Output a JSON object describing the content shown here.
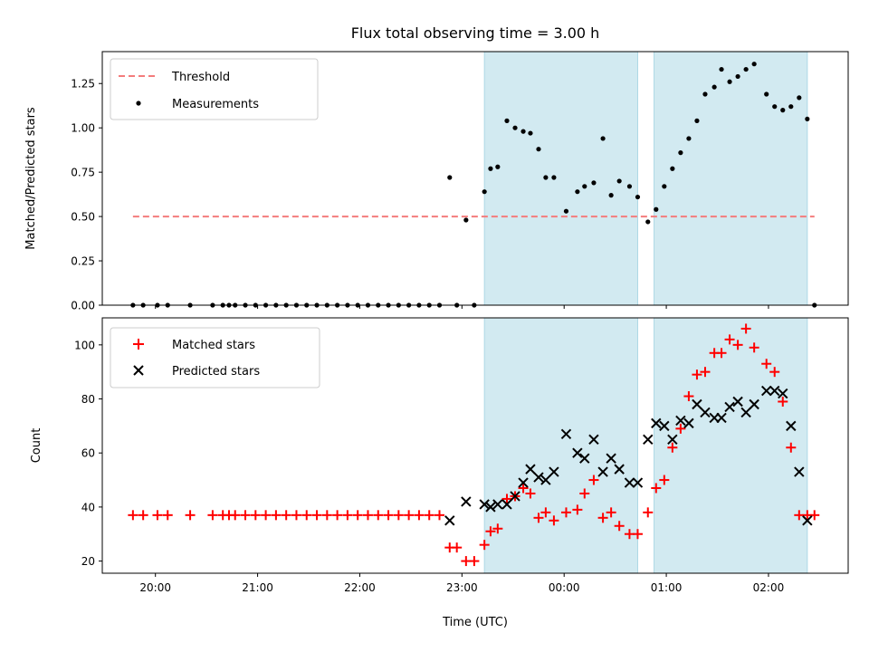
{
  "chart_data": {
    "title": "Flux total observing time = 3.00 h",
    "xlabel": "Time (UTC)",
    "x_unit": "hours relative to 00:00 UTC",
    "xlim": [
      -4.52,
      2.78
    ],
    "x_ticks": [
      {
        "value": -4,
        "label": "20:00"
      },
      {
        "value": -3,
        "label": "21:00"
      },
      {
        "value": -2,
        "label": "22:00"
      },
      {
        "value": -1,
        "label": "23:00"
      },
      {
        "value": 0,
        "label": "00:00"
      },
      {
        "value": 1,
        "label": "01:00"
      },
      {
        "value": 2,
        "label": "02:00"
      }
    ],
    "shaded_intervals": [
      [
        -0.78,
        0.72
      ],
      [
        0.88,
        2.38
      ]
    ],
    "shade_color": "#add8e6",
    "panels": [
      {
        "type": "scatter",
        "ylabel": "Matched/Predicted stars",
        "ylim": [
          0,
          1.43
        ],
        "y_ticks": [
          {
            "value": 0,
            "label": "0.00"
          },
          {
            "value": 0.25,
            "label": "0.25"
          },
          {
            "value": 0.5,
            "label": "0.50"
          },
          {
            "value": 0.75,
            "label": "0.75"
          },
          {
            "value": 1.0,
            "label": "1.00"
          },
          {
            "value": 1.25,
            "label": "1.25"
          }
        ],
        "legend_position": "upper-left",
        "threshold": {
          "name": "Threshold",
          "value": 0.5,
          "x_range": [
            -4.22,
            2.45
          ],
          "color": "#f47c7c"
        },
        "series": [
          {
            "name": "Measurements",
            "marker": "dot",
            "color": "#000000",
            "x": [
              -4.22,
              -4.12,
              -3.98,
              -3.88,
              -3.66,
              -3.44,
              -3.34,
              -3.28,
              -3.22,
              -3.12,
              -3.02,
              -2.92,
              -2.82,
              -2.72,
              -2.62,
              -2.52,
              -2.42,
              -2.32,
              -2.22,
              -2.12,
              -2.02,
              -1.92,
              -1.82,
              -1.72,
              -1.62,
              -1.52,
              -1.42,
              -1.32,
              -1.22,
              -1.12,
              -1.05,
              -0.96,
              -0.88,
              -0.78,
              -0.72,
              -0.65,
              -0.56,
              -0.48,
              -0.4,
              -0.33,
              -0.25,
              -0.18,
              -0.1,
              0.02,
              0.13,
              0.2,
              0.29,
              0.38,
              0.46,
              0.54,
              0.64,
              0.72,
              0.82,
              0.9,
              0.98,
              1.06,
              1.14,
              1.22,
              1.3,
              1.38,
              1.47,
              1.54,
              1.62,
              1.7,
              1.78,
              1.86,
              1.98,
              2.06,
              2.14,
              2.22,
              2.3,
              2.38,
              2.45
            ],
            "y": [
              0,
              0,
              0,
              0,
              0,
              0,
              0,
              0,
              0,
              0,
              0,
              0,
              0,
              0,
              0,
              0,
              0,
              0,
              0,
              0,
              0,
              0,
              0,
              0,
              0,
              0,
              0,
              0,
              0,
              0.72,
              0,
              0.48,
              0,
              0.64,
              0.77,
              0.78,
              1.04,
              1.0,
              0.98,
              0.97,
              0.88,
              0.72,
              0.72,
              0.53,
              0.64,
              0.67,
              0.69,
              0.94,
              0.62,
              0.7,
              0.67,
              0.61,
              0.47,
              0.54,
              0.67,
              0.77,
              0.86,
              0.94,
              1.04,
              1.19,
              1.23,
              1.33,
              1.26,
              1.29,
              1.33,
              1.36,
              1.19,
              1.12,
              1.1,
              1.12,
              1.17,
              1.05,
              0
            ]
          }
        ]
      },
      {
        "type": "scatter",
        "ylabel": "Count",
        "ylim": [
          15.5,
          110
        ],
        "y_ticks": [
          {
            "value": 20,
            "label": "20"
          },
          {
            "value": 40,
            "label": "40"
          },
          {
            "value": 60,
            "label": "60"
          },
          {
            "value": 80,
            "label": "80"
          },
          {
            "value": 100,
            "label": "100"
          }
        ],
        "legend_position": "upper-left",
        "series": [
          {
            "name": "Matched stars",
            "marker": "plus",
            "color": "#ff0000",
            "x": [
              -4.22,
              -4.12,
              -3.98,
              -3.88,
              -3.66,
              -3.44,
              -3.34,
              -3.28,
              -3.22,
              -3.12,
              -3.02,
              -2.92,
              -2.82,
              -2.72,
              -2.62,
              -2.52,
              -2.42,
              -2.32,
              -2.22,
              -2.12,
              -2.02,
              -1.92,
              -1.82,
              -1.72,
              -1.62,
              -1.52,
              -1.42,
              -1.32,
              -1.22,
              -1.12,
              -1.05,
              -0.96,
              -0.88,
              -0.78,
              -0.72,
              -0.65,
              -0.56,
              -0.48,
              -0.4,
              -0.33,
              -0.25,
              -0.18,
              -0.1,
              0.02,
              0.13,
              0.2,
              0.29,
              0.38,
              0.46,
              0.54,
              0.64,
              0.72,
              0.82,
              0.9,
              0.98,
              1.06,
              1.14,
              1.22,
              1.3,
              1.38,
              1.47,
              1.54,
              1.62,
              1.7,
              1.78,
              1.86,
              1.98,
              2.06,
              2.14,
              2.22,
              2.3,
              2.38,
              2.45
            ],
            "y": [
              37,
              37,
              37,
              37,
              37,
              37,
              37,
              37,
              37,
              37,
              37,
              37,
              37,
              37,
              37,
              37,
              37,
              37,
              37,
              37,
              37,
              37,
              37,
              37,
              37,
              37,
              37,
              37,
              37,
              25,
              25,
              20,
              20,
              26,
              31,
              32,
              43,
              44,
              47,
              45,
              36,
              38,
              35,
              38,
              39,
              45,
              50,
              36,
              38,
              33,
              30,
              30,
              38,
              47,
              50,
              62,
              69,
              81,
              89,
              90,
              97,
              97,
              102,
              100,
              106,
              99,
              93,
              90,
              79,
              62,
              37,
              37,
              37
            ]
          },
          {
            "name": "Predicted stars",
            "marker": "x",
            "color": "#000000",
            "x": [
              -1.12,
              -0.96,
              -0.78,
              -0.72,
              -0.65,
              -0.56,
              -0.48,
              -0.4,
              -0.33,
              -0.25,
              -0.18,
              -0.1,
              0.02,
              0.13,
              0.2,
              0.29,
              0.38,
              0.46,
              0.54,
              0.64,
              0.72,
              0.82,
              0.9,
              0.98,
              1.06,
              1.14,
              1.22,
              1.3,
              1.38,
              1.47,
              1.54,
              1.62,
              1.7,
              1.78,
              1.86,
              1.98,
              2.06,
              2.14,
              2.22,
              2.3,
              2.38
            ],
            "y": [
              35,
              42,
              41,
              40,
              41,
              41,
              44,
              49,
              54,
              51,
              50,
              53,
              67,
              60,
              58,
              65,
              53,
              58,
              54,
              49,
              49,
              65,
              71,
              70,
              65,
              72,
              71,
              78,
              75,
              73,
              73,
              77,
              79,
              75,
              78,
              83,
              83,
              82,
              70,
              53,
              35
            ]
          }
        ]
      }
    ]
  }
}
